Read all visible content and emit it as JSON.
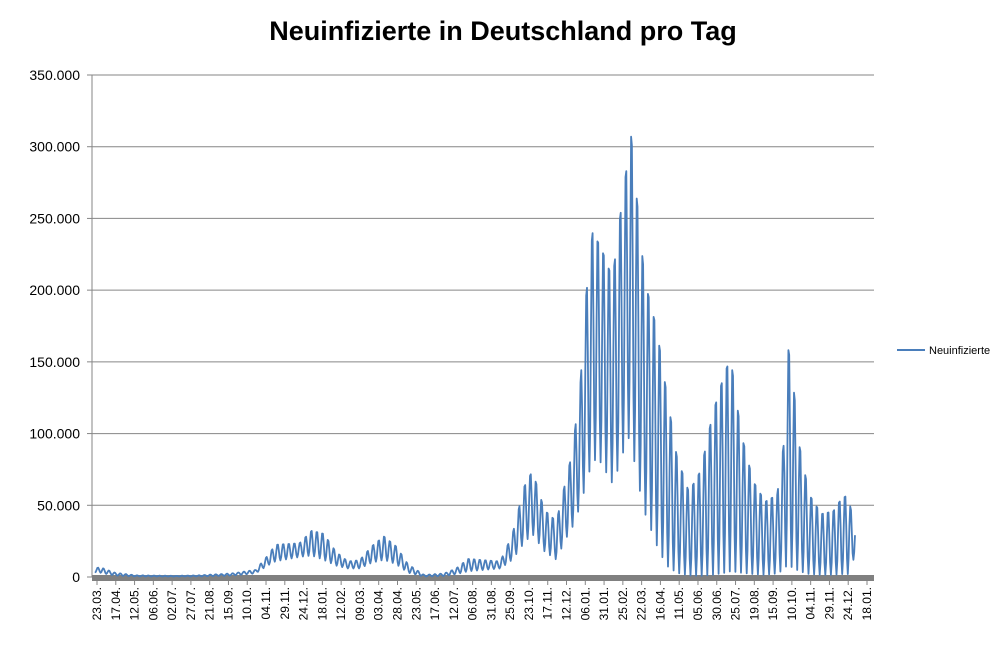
{
  "chart_data": {
    "type": "line",
    "title": "Neuinfizierte in Deutschland pro Tag",
    "xlabel": "",
    "ylabel": "",
    "ylim": [
      0,
      350000
    ],
    "y_ticks": [
      0,
      50000,
      100000,
      150000,
      200000,
      250000,
      300000,
      350000
    ],
    "y_tick_labels": [
      "0",
      "50.000",
      "100.000",
      "150.000",
      "200.000",
      "250.000",
      "300.000",
      "350.000"
    ],
    "x_tick_labels": [
      "23.03.",
      "17.04.",
      "12.05.",
      "06.06.",
      "02.07.",
      "27.07.",
      "21.08.",
      "15.09.",
      "10.10.",
      "04.11.",
      "29.11.",
      "24.12.",
      "18.01.",
      "12.02.",
      "09.03.",
      "03.04.",
      "28.04.",
      "23.05.",
      "17.06.",
      "12.07.",
      "06.08.",
      "31.08.",
      "25.09.",
      "23.10.",
      "17.11.",
      "12.12.",
      "06.01.",
      "31.01.",
      "25.02.",
      "22.03.",
      "16.04.",
      "11.05.",
      "05.06.",
      "30.06.",
      "25.07.",
      "19.08.",
      "15.09.",
      "10.10.",
      "04.11.",
      "29.11.",
      "24.12.",
      "18.01."
    ],
    "grid": true,
    "legend_position": "right",
    "series": [
      {
        "name": "Neuinfizierte",
        "color": "#4a7ebb",
        "envelope_points": [
          {
            "t": 0,
            "high": 6000,
            "low": 3000
          },
          {
            "t": 6,
            "high": 7000,
            "low": 3000
          },
          {
            "t": 25,
            "high": 3000,
            "low": 1000
          },
          {
            "t": 50,
            "high": 1200,
            "low": 400
          },
          {
            "t": 100,
            "high": 800,
            "low": 300
          },
          {
            "t": 130,
            "high": 1200,
            "low": 400
          },
          {
            "t": 170,
            "high": 2500,
            "low": 1000
          },
          {
            "t": 200,
            "high": 5000,
            "low": 2500
          },
          {
            "t": 215,
            "high": 15000,
            "low": 8000
          },
          {
            "t": 225,
            "high": 23000,
            "low": 11000
          },
          {
            "t": 255,
            "high": 24000,
            "low": 14000
          },
          {
            "t": 270,
            "high": 33000,
            "low": 15000
          },
          {
            "t": 285,
            "high": 31000,
            "low": 12000
          },
          {
            "t": 300,
            "high": 18000,
            "low": 8000
          },
          {
            "t": 315,
            "high": 11000,
            "low": 6000
          },
          {
            "t": 330,
            "high": 12000,
            "low": 6000
          },
          {
            "t": 345,
            "high": 22000,
            "low": 10000
          },
          {
            "t": 360,
            "high": 29000,
            "low": 12000
          },
          {
            "t": 375,
            "high": 22000,
            "low": 9000
          },
          {
            "t": 390,
            "high": 9000,
            "low": 3000
          },
          {
            "t": 410,
            "high": 1500,
            "low": 300
          },
          {
            "t": 435,
            "high": 2500,
            "low": 700
          },
          {
            "t": 450,
            "high": 6000,
            "low": 2000
          },
          {
            "t": 465,
            "high": 13000,
            "low": 4000
          },
          {
            "t": 485,
            "high": 12000,
            "low": 5000
          },
          {
            "t": 505,
            "high": 11000,
            "low": 6000
          },
          {
            "t": 520,
            "high": 30000,
            "low": 12000
          },
          {
            "t": 535,
            "high": 65000,
            "low": 24000
          },
          {
            "t": 545,
            "high": 76000,
            "low": 30000
          },
          {
            "t": 560,
            "high": 48000,
            "low": 18000
          },
          {
            "t": 575,
            "high": 40000,
            "low": 12000
          },
          {
            "t": 585,
            "high": 65000,
            "low": 25000
          },
          {
            "t": 595,
            "high": 90000,
            "low": 35000
          },
          {
            "t": 605,
            "high": 140000,
            "low": 50000
          },
          {
            "t": 612,
            "high": 203000,
            "low": 65000
          },
          {
            "t": 620,
            "high": 248000,
            "low": 82000
          },
          {
            "t": 630,
            "high": 238000,
            "low": 80000
          },
          {
            "t": 645,
            "high": 215000,
            "low": 65000
          },
          {
            "t": 655,
            "high": 263000,
            "low": 80000
          },
          {
            "t": 663,
            "high": 297000,
            "low": 98000
          },
          {
            "t": 668,
            "high": 318000,
            "low": 95000
          },
          {
            "t": 675,
            "high": 274000,
            "low": 70000
          },
          {
            "t": 685,
            "high": 215000,
            "low": 45000
          },
          {
            "t": 700,
            "high": 180000,
            "low": 22000
          },
          {
            "t": 712,
            "high": 135000,
            "low": 8000
          },
          {
            "t": 725,
            "high": 88000,
            "low": 3000
          },
          {
            "t": 740,
            "high": 62000,
            "low": 1000
          },
          {
            "t": 755,
            "high": 78000,
            "low": 800
          },
          {
            "t": 770,
            "high": 120000,
            "low": 1500
          },
          {
            "t": 785,
            "high": 150000,
            "low": 3000
          },
          {
            "t": 792,
            "high": 160000,
            "low": 4000
          },
          {
            "t": 805,
            "high": 105000,
            "low": 3000
          },
          {
            "t": 820,
            "high": 70000,
            "low": 2000
          },
          {
            "t": 835,
            "high": 55000,
            "low": 1500
          },
          {
            "t": 850,
            "high": 60000,
            "low": 2500
          },
          {
            "t": 858,
            "high": 96000,
            "low": 5000
          },
          {
            "t": 862,
            "high": 173000,
            "low": 8000
          },
          {
            "t": 868,
            "high": 152000,
            "low": 7000
          },
          {
            "t": 878,
            "high": 95000,
            "low": 4000
          },
          {
            "t": 890,
            "high": 60000,
            "low": 2000
          },
          {
            "t": 905,
            "high": 46000,
            "low": 1500
          },
          {
            "t": 920,
            "high": 48000,
            "low": 1500
          },
          {
            "t": 930,
            "high": 57000,
            "low": 2000
          },
          {
            "t": 938,
            "high": 60000,
            "low": 2000
          },
          {
            "t": 945,
            "high": 40000,
            "low": 12000
          }
        ],
        "weekly_period_days": 7,
        "total_days": 947
      }
    ]
  }
}
